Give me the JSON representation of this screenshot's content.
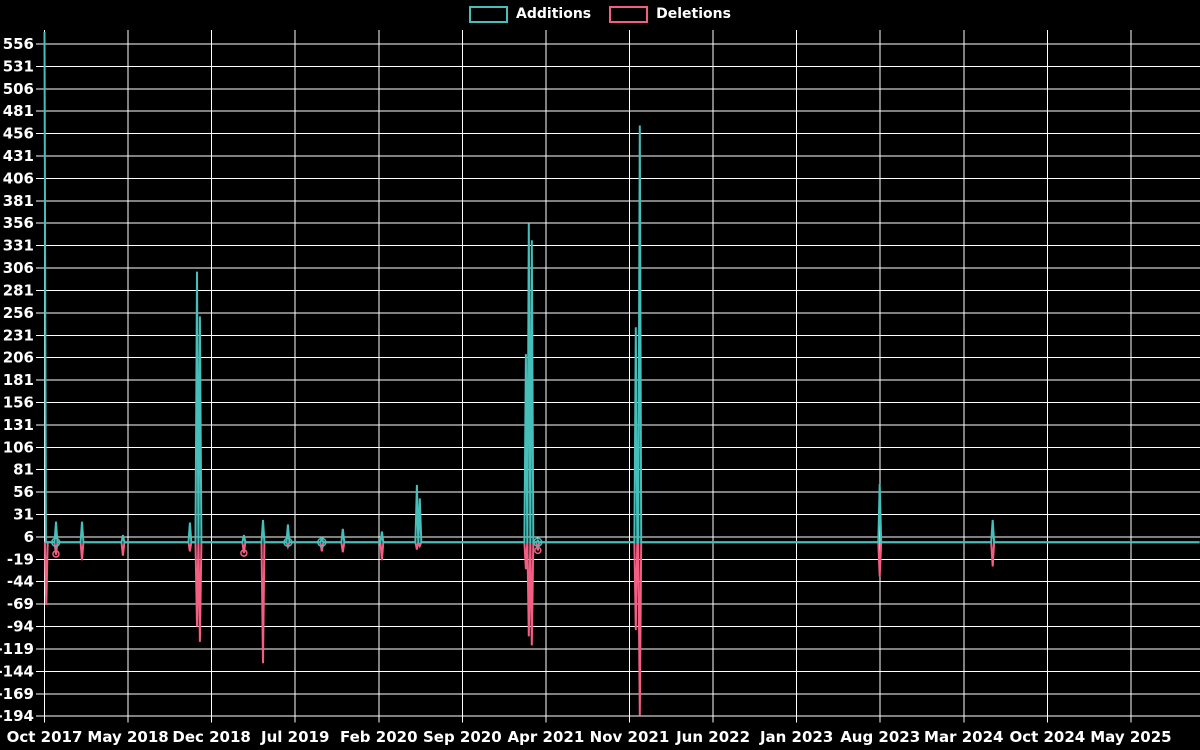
{
  "page": {
    "background": "#000000",
    "text_color": "#ffffff",
    "gridline_color": "#ffffff"
  },
  "legend": {
    "position": "top-center",
    "items": [
      {
        "label": "Additions",
        "color": "#46beb9"
      },
      {
        "label": "Deletions",
        "color": "#f25f82"
      }
    ]
  },
  "chart_data": {
    "type": "line",
    "title": "",
    "xlabel": "",
    "ylabel": "",
    "grid": true,
    "legend_position": "top-center",
    "baseline_value": 0,
    "x_axis": {
      "tick_labels": [
        "Oct 2017",
        "May 2018",
        "Dec 2018",
        "Jul 2019",
        "Feb 2020",
        "Sep 2020",
        "Apr 2021",
        "Nov 2021",
        "Jun 2022",
        "Jan 2023",
        "Aug 2023",
        "Mar 2024",
        "Oct 2024",
        "May 2025"
      ],
      "months_between_ticks": 7,
      "start_month": "2017-10",
      "plot_end_month_offset": 96.75
    },
    "y_axis": {
      "min": -194,
      "max": 556,
      "step": 25,
      "ticks": [
        556,
        531,
        506,
        481,
        456,
        431,
        406,
        381,
        356,
        331,
        306,
        281,
        256,
        231,
        206,
        181,
        156,
        131,
        106,
        81,
        56,
        31,
        6,
        -19,
        -44,
        -69,
        -94,
        -119,
        -144,
        -169,
        -194
      ]
    },
    "series": [
      {
        "name": "Additions",
        "color": "#46beb9",
        "note": "weekly spikes above 0 baseline; first spike clipped at top of plot",
        "spikes": [
          {
            "date": "2017-10",
            "m": 0.0,
            "value": 570,
            "clipped_at_top": true
          },
          {
            "date": "2017-11",
            "m": 0.96,
            "value": 23
          },
          {
            "date": "2018-01",
            "m": 3.14,
            "value": 23
          },
          {
            "date": "2018-04",
            "m": 6.57,
            "value": 8
          },
          {
            "date": "2018-10",
            "m": 12.18,
            "value": 22
          },
          {
            "date": "2018-11",
            "m": 12.77,
            "value": 302
          },
          {
            "date": "2018-12",
            "m": 13.02,
            "value": 252
          },
          {
            "date": "2019-02",
            "m": 16.7,
            "value": 8
          },
          {
            "date": "2019-04",
            "m": 18.3,
            "value": 25
          },
          {
            "date": "2019-06",
            "m": 20.39,
            "value": 20
          },
          {
            "date": "2019-09",
            "m": 23.23,
            "value": 4
          },
          {
            "date": "2019-11",
            "m": 24.99,
            "value": 15
          },
          {
            "date": "2020-02",
            "m": 28.26,
            "value": 12
          },
          {
            "date": "2020-05",
            "m": 31.19,
            "value": 64
          },
          {
            "date": "2020-06",
            "m": 31.44,
            "value": 49
          },
          {
            "date": "2021-02",
            "m": 40.32,
            "value": 210
          },
          {
            "date": "2021-03",
            "m": 40.57,
            "value": 356
          },
          {
            "date": "2021-03",
            "m": 40.82,
            "value": 337
          },
          {
            "date": "2021-04",
            "m": 41.32,
            "value": 2
          },
          {
            "date": "2021-11",
            "m": 49.53,
            "value": 240
          },
          {
            "date": "2021-12",
            "m": 49.86,
            "value": 465
          },
          {
            "date": "2023-08",
            "m": 69.96,
            "value": 65
          },
          {
            "date": "2024-05",
            "m": 79.42,
            "value": 25
          }
        ]
      },
      {
        "name": "Deletions",
        "color": "#f25f82",
        "note": "weekly spikes below 0 baseline",
        "spikes": [
          {
            "date": "2017-10",
            "m": 0.15,
            "value": -70
          },
          {
            "date": "2017-11",
            "m": 0.96,
            "value": -14
          },
          {
            "date": "2018-01",
            "m": 3.14,
            "value": -20
          },
          {
            "date": "2018-04",
            "m": 6.57,
            "value": -15
          },
          {
            "date": "2018-10",
            "m": 12.18,
            "value": -10
          },
          {
            "date": "2018-11",
            "m": 12.77,
            "value": -94
          },
          {
            "date": "2018-12",
            "m": 13.02,
            "value": -111
          },
          {
            "date": "2019-02",
            "m": 16.7,
            "value": -12
          },
          {
            "date": "2019-04",
            "m": 18.3,
            "value": -135
          },
          {
            "date": "2019-06",
            "m": 20.39,
            "value": -5
          },
          {
            "date": "2019-09",
            "m": 23.23,
            "value": -10
          },
          {
            "date": "2019-11",
            "m": 24.99,
            "value": -11
          },
          {
            "date": "2020-02",
            "m": 28.26,
            "value": -20
          },
          {
            "date": "2020-05",
            "m": 31.19,
            "value": -8
          },
          {
            "date": "2020-06",
            "m": 31.44,
            "value": -4
          },
          {
            "date": "2021-02",
            "m": 40.32,
            "value": -30
          },
          {
            "date": "2021-03",
            "m": 40.57,
            "value": -105
          },
          {
            "date": "2021-03",
            "m": 40.82,
            "value": -115
          },
          {
            "date": "2021-04",
            "m": 41.32,
            "value": -9
          },
          {
            "date": "2021-11",
            "m": 49.53,
            "value": -98
          },
          {
            "date": "2021-12",
            "m": 49.86,
            "value": -193
          },
          {
            "date": "2023-08",
            "m": 69.96,
            "value": -38
          },
          {
            "date": "2024-05",
            "m": 79.42,
            "value": -27
          }
        ]
      }
    ],
    "markers": [
      {
        "series": 0,
        "m": 0.94,
        "value": 0,
        "shape": "open-circle"
      },
      {
        "series": 0,
        "m": 20.39,
        "value": 0,
        "shape": "open-circle"
      },
      {
        "series": 0,
        "m": 23.23,
        "value": 0,
        "shape": "open-circle"
      },
      {
        "series": 0,
        "m": 41.32,
        "value": 0,
        "shape": "open-circle"
      },
      {
        "series": 1,
        "m": 0.96,
        "value": -13,
        "shape": "open-circle"
      },
      {
        "series": 1,
        "m": 16.7,
        "value": -12,
        "shape": "open-circle"
      },
      {
        "series": 1,
        "m": 41.32,
        "value": -9,
        "shape": "open-circle"
      }
    ]
  }
}
